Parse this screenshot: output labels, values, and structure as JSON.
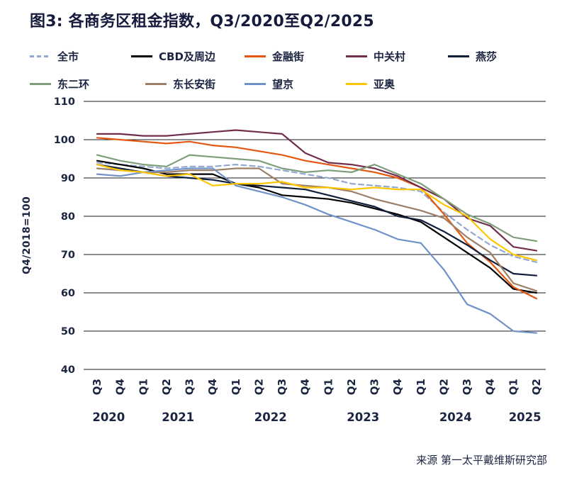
{
  "page": {
    "title": "图3: 各商务区租金指数，Q3/2020至Q2/2025",
    "source": "来源 第一太平戴维斯研究部",
    "text_color": "#1b2440"
  },
  "legend": {
    "items": [
      {
        "label": "全市",
        "color": "#93a9d2",
        "dashed": true
      },
      {
        "label": "CBD及周边",
        "color": "#000000",
        "dashed": false
      },
      {
        "label": "金融街",
        "color": "#e4570f",
        "dashed": false
      },
      {
        "label": "中关村",
        "color": "#722e4d",
        "dashed": false
      },
      {
        "label": "燕莎",
        "color": "#101f3c",
        "dashed": false
      },
      {
        "label": "东二环",
        "color": "#7f9e7a",
        "dashed": false
      },
      {
        "label": "东长安街",
        "color": "#9c7f64",
        "dashed": false
      },
      {
        "label": "望京",
        "color": "#7092c8",
        "dashed": false
      },
      {
        "label": "亚奥",
        "color": "#ffc600",
        "dashed": false
      }
    ]
  },
  "chart_data": {
    "type": "line",
    "title": "图3: 各商务区租金指数，Q3/2020至Q2/2025",
    "ylabel": "Q4/2018=100",
    "ylim": [
      40,
      110
    ],
    "yticks": [
      110,
      100,
      90,
      80,
      70,
      60,
      50,
      40
    ],
    "grid": "horizontal",
    "legend_position": "top",
    "categories": [
      "Q3",
      "Q4",
      "Q1",
      "Q2",
      "Q3",
      "Q4",
      "Q1",
      "Q2",
      "Q3",
      "Q4",
      "Q1",
      "Q2",
      "Q3",
      "Q4",
      "Q1",
      "Q2",
      "Q3",
      "Q4",
      "Q1",
      "Q2"
    ],
    "year_groups": [
      {
        "label": "2020",
        "start": 0,
        "count": 2
      },
      {
        "label": "2021",
        "start": 2,
        "count": 4
      },
      {
        "label": "2022",
        "start": 6,
        "count": 4
      },
      {
        "label": "2023",
        "start": 10,
        "count": 4
      },
      {
        "label": "2024",
        "start": 14,
        "count": 4
      },
      {
        "label": "2025",
        "start": 18,
        "count": 2
      }
    ],
    "series": [
      {
        "name": "全市",
        "key": "quanshi",
        "color": "#93a9d2",
        "dashed": true,
        "values": [
          94,
          93.5,
          93,
          92.5,
          93,
          93,
          93.5,
          93,
          92,
          91,
          90,
          88.5,
          88,
          87.5,
          86.5,
          81,
          76.5,
          72.5,
          69.5,
          68
        ]
      },
      {
        "name": "CBD及周边",
        "key": "cbd",
        "color": "#000000",
        "dashed": false,
        "values": [
          94.5,
          93.5,
          92.5,
          91,
          91,
          91,
          88.5,
          87.5,
          85.5,
          85,
          84.5,
          83.5,
          82,
          80.5,
          78.5,
          74.5,
          70.5,
          66.5,
          61,
          60
        ]
      },
      {
        "name": "金融街",
        "key": "jinrongjie",
        "color": "#e4570f",
        "dashed": false,
        "values": [
          100.5,
          100,
          99.5,
          99,
          99.5,
          98.5,
          98,
          97,
          96,
          94.5,
          93.5,
          92.5,
          91.5,
          90,
          87.5,
          80.5,
          73,
          68,
          61.5,
          58.5
        ]
      },
      {
        "name": "中关村",
        "key": "zhongguancun",
        "color": "#722e4d",
        "dashed": false,
        "values": [
          101.5,
          101.5,
          101,
          101,
          101.5,
          102,
          102.5,
          102,
          101.5,
          96.5,
          94,
          93.5,
          92.5,
          90.5,
          87.5,
          84.5,
          79.5,
          77.5,
          72,
          71
        ]
      },
      {
        "name": "燕莎",
        "key": "yansha",
        "color": "#101f3c",
        "dashed": false,
        "values": [
          93.5,
          92.5,
          91.5,
          90.5,
          90,
          89.5,
          88.5,
          88,
          87.5,
          87,
          85.5,
          84,
          82.5,
          80,
          79,
          76,
          72.5,
          68.5,
          65,
          64.5
        ]
      },
      {
        "name": "东二环",
        "key": "dongerhuan",
        "color": "#7f9e7a",
        "dashed": false,
        "values": [
          96,
          94.5,
          93.5,
          93,
          96,
          95.5,
          95,
          94.5,
          92.5,
          91.5,
          92,
          91.5,
          93.5,
          91,
          88.5,
          84.5,
          80.5,
          78,
          74.5,
          73.5
        ]
      },
      {
        "name": "东长安街",
        "key": "dongchanganjie",
        "color": "#9c7f64",
        "dashed": false,
        "values": [
          92.5,
          92,
          91.5,
          91.5,
          92,
          92,
          92.5,
          92.5,
          88.5,
          88,
          87.5,
          86.5,
          84.5,
          83,
          81.5,
          79.5,
          74.5,
          70.5,
          62.5,
          60.5
        ]
      },
      {
        "name": "望京",
        "key": "wangjing",
        "color": "#7092c8",
        "dashed": false,
        "values": [
          91,
          90.5,
          91.5,
          92,
          92.5,
          92.5,
          88,
          86.5,
          85,
          83,
          80.5,
          78.5,
          76.5,
          74,
          73,
          66,
          57,
          54.5,
          50,
          49.5
        ]
      },
      {
        "name": "亚奥",
        "key": "yaao",
        "color": "#ffc600",
        "dashed": false,
        "values": [
          93.5,
          92,
          91.5,
          90.5,
          91,
          88,
          88.5,
          88.5,
          89,
          87.5,
          87.5,
          87,
          87.5,
          87,
          87,
          83,
          80,
          74,
          70,
          68.5
        ]
      }
    ]
  }
}
